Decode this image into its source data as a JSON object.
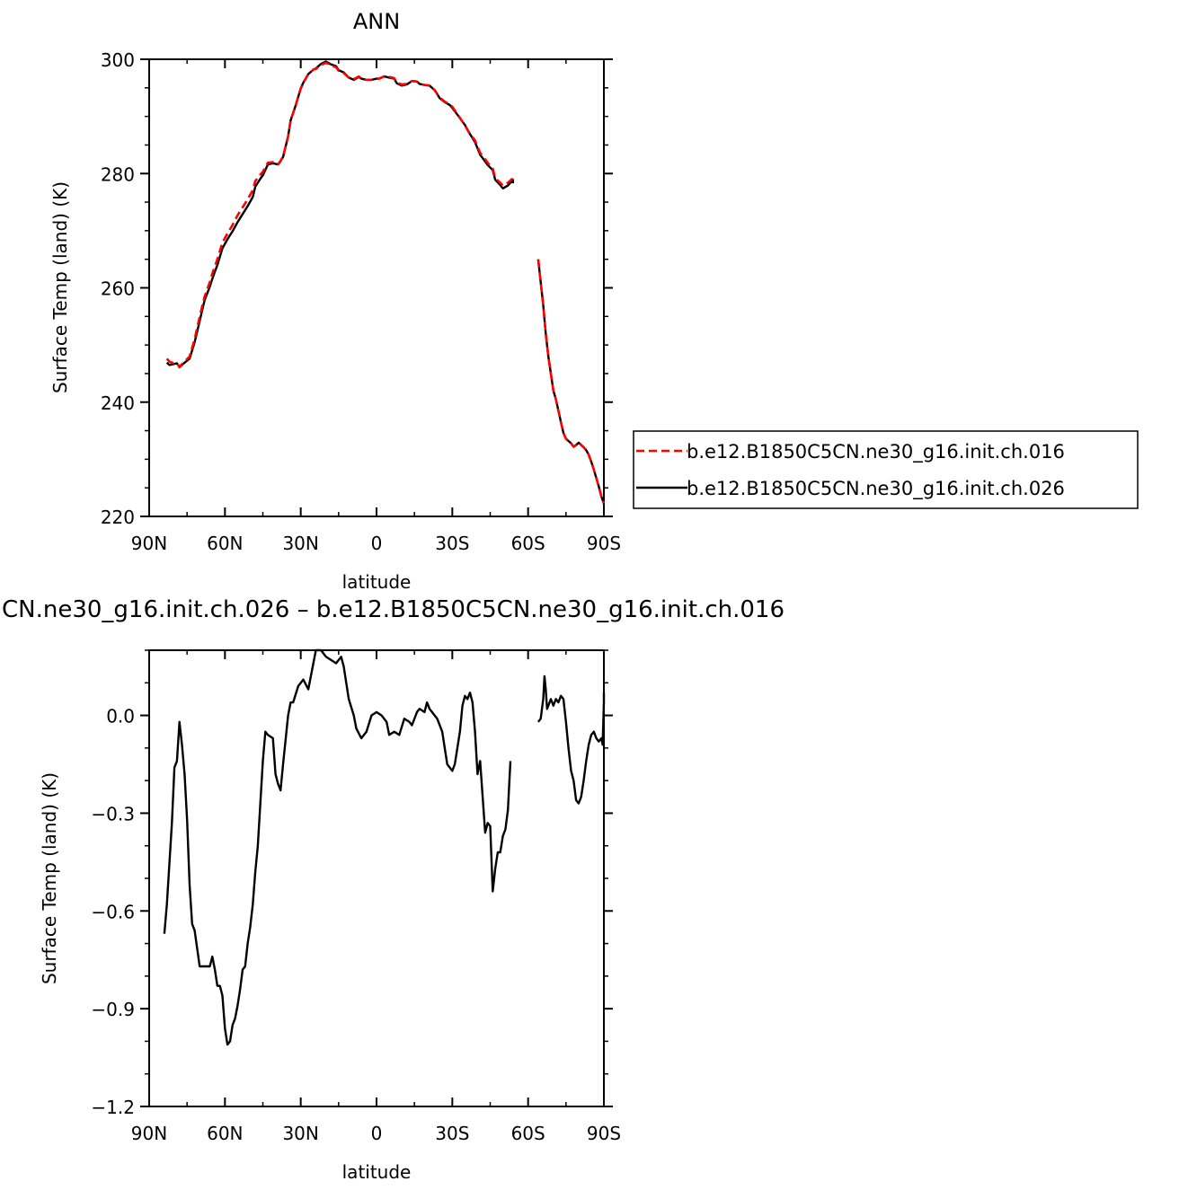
{
  "chart_data": [
    {
      "type": "line",
      "title": "ANN",
      "xlabel": "latitude",
      "ylabel": "Surface Temp (land) (K)",
      "xlim": [
        90,
        -90
      ],
      "ylim": [
        220,
        300
      ],
      "x_ticks": [
        {
          "value": 90,
          "label": "90N"
        },
        {
          "value": 60,
          "label": "60N"
        },
        {
          "value": 30,
          "label": "30N"
        },
        {
          "value": 0,
          "label": "0"
        },
        {
          "value": -30,
          "label": "30S"
        },
        {
          "value": -60,
          "label": "60S"
        },
        {
          "value": -90,
          "label": "90S"
        }
      ],
      "y_ticks": [
        {
          "value": 300,
          "label": "300"
        },
        {
          "value": 280,
          "label": "280"
        },
        {
          "value": 260,
          "label": "260"
        },
        {
          "value": 240,
          "label": "240"
        },
        {
          "value": 220,
          "label": "220"
        }
      ],
      "legend_position": "right",
      "series": [
        {
          "name": "b.e12.B1850C5CN.ne30_g16.init.ch.016",
          "color": "#ff0000",
          "dash": "dashed",
          "x": [
            83,
            82,
            81,
            79,
            78,
            76,
            74,
            72,
            71,
            69,
            68,
            66,
            65,
            63,
            61,
            59,
            57,
            55,
            53,
            51,
            49,
            48,
            46,
            45,
            43,
            41,
            39,
            38,
            37,
            35,
            34,
            32,
            30,
            29,
            27,
            25,
            24,
            22,
            20,
            18,
            16,
            15,
            13,
            11,
            9,
            7,
            6,
            4,
            2,
            0,
            -1,
            -3,
            -5,
            -7,
            -8,
            -10,
            -12,
            -14,
            -16,
            -17,
            -19,
            -21,
            -23,
            -25,
            -27,
            -29,
            -30,
            -32,
            -34,
            -35,
            -37,
            -39,
            -41,
            -42,
            -44,
            -46,
            -47,
            -49,
            -50,
            -52,
            -54,
            -54,
            null,
            -64,
            -65,
            -66,
            -67,
            -68,
            -69,
            -70,
            -71,
            -72,
            -73,
            -74,
            -75,
            -76,
            -77,
            -78,
            -79,
            -80,
            -81,
            -82,
            -83,
            -84,
            -85,
            -86,
            -87,
            -88,
            -89,
            -90
          ],
          "y": [
            247.6,
            247.1,
            246.9,
            246.8,
            246.2,
            247.1,
            248,
            251,
            253,
            256.8,
            258.5,
            261,
            262.5,
            265,
            267.9,
            269.5,
            271,
            272.7,
            274.1,
            275.5,
            277.1,
            278.7,
            279.8,
            280.3,
            281.9,
            282,
            281.6,
            282.2,
            283,
            286.5,
            289.3,
            291.9,
            294.9,
            295.9,
            297.4,
            298.2,
            298.3,
            299,
            299.4,
            298.9,
            298.6,
            298,
            297.6,
            296.8,
            296.5,
            297,
            296.6,
            296.4,
            296.4,
            296.6,
            296.6,
            297,
            296.9,
            296.7,
            295.9,
            295.6,
            295.7,
            296.2,
            296.1,
            295.7,
            295.5,
            295.4,
            294.6,
            293.3,
            292.6,
            292.1,
            291.7,
            290.4,
            289.1,
            288.4,
            286.9,
            285.8,
            283.6,
            283.1,
            281.9,
            280.9,
            279.2,
            278.4,
            277.9,
            278.4,
            279.2,
            278.6,
            null,
            265,
            261,
            257,
            252,
            248,
            245,
            242,
            240.5,
            238.5,
            236.5,
            234.6,
            233.6,
            233.2,
            232.8,
            232.2,
            232.5,
            232.9,
            232.5,
            232.1,
            231.6,
            230.8,
            229.6,
            228.2,
            226.7,
            225.2,
            223.5,
            222.3
          ]
        },
        {
          "name": "b.e12.B1850C5CN.ne30_g16.init.ch.026",
          "color": "#000000",
          "dash": "solid",
          "x": [
            83,
            82,
            81,
            79,
            78,
            76,
            74,
            72,
            71,
            69,
            68,
            66,
            65,
            63,
            61,
            59,
            57,
            55,
            53,
            51,
            49,
            48,
            46,
            45,
            43,
            41,
            39,
            38,
            37,
            35,
            34,
            32,
            30,
            29,
            27,
            25,
            24,
            22,
            20,
            18,
            16,
            15,
            13,
            11,
            9,
            7,
            6,
            4,
            2,
            0,
            -1,
            -3,
            -5,
            -7,
            -8,
            -10,
            -12,
            -14,
            -16,
            -17,
            -19,
            -21,
            -23,
            -25,
            -27,
            -29,
            -30,
            -32,
            -34,
            -35,
            -37,
            -39,
            -41,
            -42,
            -44,
            -46,
            -47,
            -49,
            -50,
            -52,
            -54,
            -54,
            null,
            -64,
            -65,
            -66,
            -67,
            -68,
            -69,
            -70,
            -71,
            -72,
            -73,
            -74,
            -75,
            -76,
            -77,
            -78,
            -79,
            -80,
            -81,
            -82,
            -83,
            -84,
            -85,
            -86,
            -87,
            -88,
            -89,
            -90
          ],
          "y": [
            246.9,
            246.5,
            246.6,
            246.8,
            246.1,
            246.9,
            247.6,
            250.5,
            252.3,
            256.1,
            257.9,
            260.2,
            261.6,
            264,
            266.9,
            268.5,
            269.9,
            271.5,
            272.9,
            274.3,
            275.9,
            277.7,
            279.1,
            279.7,
            281.6,
            281.8,
            281.6,
            282.2,
            282.9,
            286.5,
            289.3,
            291.9,
            294.9,
            295.9,
            297.4,
            298.2,
            298.4,
            299.2,
            299.6,
            299.1,
            298.8,
            298.1,
            297.7,
            296.8,
            296.4,
            296.9,
            296.6,
            296.4,
            296.4,
            296.6,
            296.6,
            297,
            296.8,
            296.6,
            295.8,
            295.4,
            295.6,
            296.2,
            296.1,
            295.7,
            295.5,
            295.4,
            294.6,
            293.2,
            292.5,
            292,
            291.5,
            290.3,
            289.1,
            288.5,
            286.9,
            285.5,
            283.3,
            282.7,
            281.5,
            280.6,
            278.9,
            278,
            277.4,
            277.9,
            278.9,
            278.3,
            null,
            265,
            261,
            257,
            252,
            248,
            245,
            242,
            240.5,
            238.5,
            236.5,
            234.6,
            233.6,
            233.2,
            232.8,
            232.2,
            232.5,
            232.9,
            232.5,
            232.1,
            231.6,
            230.8,
            229.6,
            228.2,
            226.7,
            225.2,
            223.5,
            222.2
          ]
        }
      ]
    },
    {
      "type": "line",
      "title": "CN.ne30_g16.init.ch.026 – b.e12.B1850C5CN.ne30_g16.init.ch.016",
      "xlabel": "latitude",
      "ylabel": "Surface Temp (land) (K)",
      "xlim": [
        90,
        -90
      ],
      "ylim": [
        -1.2,
        0.2
      ],
      "x_ticks": [
        {
          "value": 90,
          "label": "90N"
        },
        {
          "value": 60,
          "label": "60N"
        },
        {
          "value": 30,
          "label": "30N"
        },
        {
          "value": 0,
          "label": "0"
        },
        {
          "value": -30,
          "label": "30S"
        },
        {
          "value": -60,
          "label": "60S"
        },
        {
          "value": -90,
          "label": "90S"
        }
      ],
      "y_ticks": [
        {
          "value": 0.0,
          "label": "0.0"
        },
        {
          "value": -0.3,
          "label": "−0.3"
        },
        {
          "value": -0.6,
          "label": "−0.6"
        },
        {
          "value": -0.9,
          "label": "−0.9"
        },
        {
          "value": -1.2,
          "label": "−1.2"
        }
      ],
      "series": [
        {
          "color": "#000000",
          "dash": "solid",
          "x": [
            84,
            83,
            81,
            80,
            79,
            78,
            77,
            76,
            75,
            74,
            73,
            72,
            70,
            69,
            67,
            66,
            65,
            64,
            63,
            62,
            61,
            60,
            59,
            58,
            57,
            56,
            55,
            54,
            53,
            52,
            51,
            50,
            49,
            48,
            47,
            46,
            45,
            44,
            43,
            41,
            40,
            39,
            38,
            37,
            35,
            34,
            33,
            31,
            29,
            27,
            26,
            24,
            22,
            20,
            18,
            16,
            14,
            13,
            12,
            11,
            9,
            8,
            6,
            4,
            2,
            0,
            -2,
            -4,
            -5,
            -7,
            -9,
            -11,
            -13,
            -14,
            -16,
            -17,
            -19,
            -20,
            -21,
            -22,
            -24,
            -26,
            -27,
            -28,
            -30,
            -31,
            -33,
            -34,
            -35,
            -36,
            -37,
            -38,
            -39,
            -40,
            -41,
            -42,
            -43,
            -44,
            -45,
            -46,
            -47,
            -48,
            -49,
            -50,
            -51,
            -52,
            -53,
            null,
            -64,
            -65,
            -66,
            -66.5,
            -67,
            -67.5,
            -68,
            -69,
            -70,
            -71,
            -72,
            -73,
            -74,
            -75,
            -76,
            -77,
            -78,
            -79,
            -80,
            -81,
            -82,
            -83,
            -84,
            -85,
            -86,
            -87,
            -88,
            -89,
            -89.5,
            -90,
            -90
          ],
          "y": [
            -0.67,
            -0.58,
            -0.33,
            -0.16,
            -0.14,
            -0.02,
            -0.09,
            -0.18,
            -0.32,
            -0.52,
            -0.64,
            -0.66,
            -0.77,
            -0.77,
            -0.77,
            -0.77,
            -0.74,
            -0.78,
            -0.83,
            -0.83,
            -0.86,
            -0.96,
            -1.01,
            -1.0,
            -0.95,
            -0.93,
            -0.89,
            -0.84,
            -0.78,
            -0.77,
            -0.7,
            -0.65,
            -0.58,
            -0.48,
            -0.4,
            -0.27,
            -0.14,
            -0.05,
            -0.06,
            -0.07,
            -0.18,
            -0.21,
            -0.23,
            -0.15,
            0.0,
            0.04,
            0.04,
            0.09,
            0.11,
            0.08,
            0.12,
            0.2,
            0.2,
            0.18,
            0.17,
            0.16,
            0.18,
            0.15,
            0.1,
            0.05,
            0.0,
            -0.04,
            -0.07,
            -0.05,
            0.0,
            0.01,
            0.0,
            -0.02,
            -0.06,
            -0.05,
            -0.06,
            -0.01,
            -0.02,
            -0.03,
            0.01,
            0.02,
            0.01,
            0.04,
            0.02,
            0.01,
            -0.01,
            -0.05,
            -0.1,
            -0.15,
            -0.17,
            -0.15,
            -0.05,
            0.03,
            0.06,
            0.05,
            0.07,
            0.04,
            -0.05,
            -0.18,
            -0.14,
            -0.25,
            -0.36,
            -0.33,
            -0.34,
            -0.54,
            -0.47,
            -0.42,
            -0.42,
            -0.37,
            -0.35,
            -0.29,
            -0.14,
            null,
            -0.02,
            -0.01,
            0.05,
            0.12,
            0.08,
            0.02,
            0.03,
            0.05,
            0.03,
            0.05,
            0.04,
            0.06,
            0.05,
            -0.02,
            -0.1,
            -0.17,
            -0.2,
            -0.26,
            -0.27,
            -0.25,
            -0.2,
            -0.14,
            -0.09,
            -0.06,
            -0.05,
            -0.07,
            -0.08,
            -0.07,
            -0.09,
            0.04,
            0.07
          ]
        }
      ]
    }
  ]
}
